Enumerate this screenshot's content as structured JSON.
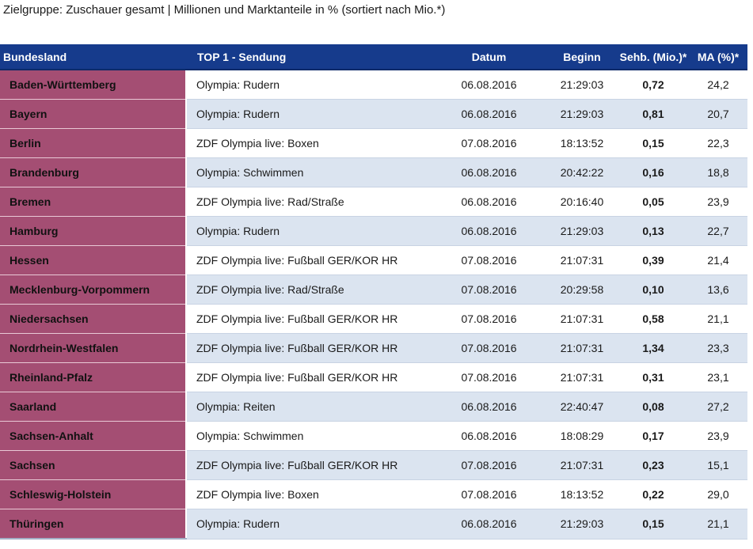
{
  "caption": "Zielgruppe: Zuschauer gesamt | Millionen und Marktanteile in % (sortiert nach Mio.*)",
  "table": {
    "headers": {
      "land": "Bundesland",
      "show": "TOP 1 - Sendung",
      "date": "Datum",
      "start": "Beginn",
      "reach": "Sehb. (Mio.)*",
      "share": "MA (%)*"
    },
    "rows": [
      {
        "land": "Baden-Württemberg",
        "show": "Olympia: Rudern",
        "date": "06.08.2016",
        "start": "21:29:03",
        "reach": "0,72",
        "share": "24,2"
      },
      {
        "land": "Bayern",
        "show": "Olympia: Rudern",
        "date": "06.08.2016",
        "start": "21:29:03",
        "reach": "0,81",
        "share": "20,7"
      },
      {
        "land": "Berlin",
        "show": "ZDF Olympia live: Boxen",
        "date": "07.08.2016",
        "start": "18:13:52",
        "reach": "0,15",
        "share": "22,3"
      },
      {
        "land": "Brandenburg",
        "show": "Olympia: Schwimmen",
        "date": "06.08.2016",
        "start": "20:42:22",
        "reach": "0,16",
        "share": "18,8"
      },
      {
        "land": "Bremen",
        "show": "ZDF Olympia live: Rad/Straße",
        "date": "06.08.2016",
        "start": "20:16:40",
        "reach": "0,05",
        "share": "23,9"
      },
      {
        "land": "Hamburg",
        "show": "Olympia: Rudern",
        "date": "06.08.2016",
        "start": "21:29:03",
        "reach": "0,13",
        "share": "22,7"
      },
      {
        "land": "Hessen",
        "show": "ZDF Olympia live: Fußball GER/KOR HR",
        "date": "07.08.2016",
        "start": "21:07:31",
        "reach": "0,39",
        "share": "21,4"
      },
      {
        "land": "Mecklenburg-Vorpommern",
        "show": "ZDF Olympia live: Rad/Straße",
        "date": "07.08.2016",
        "start": "20:29:58",
        "reach": "0,10",
        "share": "13,6"
      },
      {
        "land": "Niedersachsen",
        "show": "ZDF Olympia live: Fußball GER/KOR HR",
        "date": "07.08.2016",
        "start": "21:07:31",
        "reach": "0,58",
        "share": "21,1"
      },
      {
        "land": "Nordrhein-Westfalen",
        "show": "ZDF Olympia live: Fußball GER/KOR HR",
        "date": "07.08.2016",
        "start": "21:07:31",
        "reach": "1,34",
        "share": "23,3"
      },
      {
        "land": "Rheinland-Pfalz",
        "show": "ZDF Olympia live: Fußball GER/KOR HR",
        "date": "07.08.2016",
        "start": "21:07:31",
        "reach": "0,31",
        "share": "23,1"
      },
      {
        "land": "Saarland",
        "show": "Olympia: Reiten",
        "date": "06.08.2016",
        "start": "22:40:47",
        "reach": "0,08",
        "share": "27,2"
      },
      {
        "land": "Sachsen-Anhalt",
        "show": "Olympia: Schwimmen",
        "date": "06.08.2016",
        "start": "18:08:29",
        "reach": "0,17",
        "share": "23,9"
      },
      {
        "land": "Sachsen",
        "show": "ZDF Olympia live: Fußball GER/KOR HR",
        "date": "07.08.2016",
        "start": "21:07:31",
        "reach": "0,23",
        "share": "15,1"
      },
      {
        "land": "Schleswig-Holstein",
        "show": "ZDF Olympia live: Boxen",
        "date": "07.08.2016",
        "start": "18:13:52",
        "reach": "0,22",
        "share": "29,0"
      },
      {
        "land": "Thüringen",
        "show": "Olympia: Rudern",
        "date": "06.08.2016",
        "start": "21:29:03",
        "reach": "0,15",
        "share": "21,1"
      }
    ]
  },
  "colors": {
    "header_bg": "#163b8c",
    "land_bg": "#a44e73",
    "row_alt_bg": "#dbe4f0"
  }
}
